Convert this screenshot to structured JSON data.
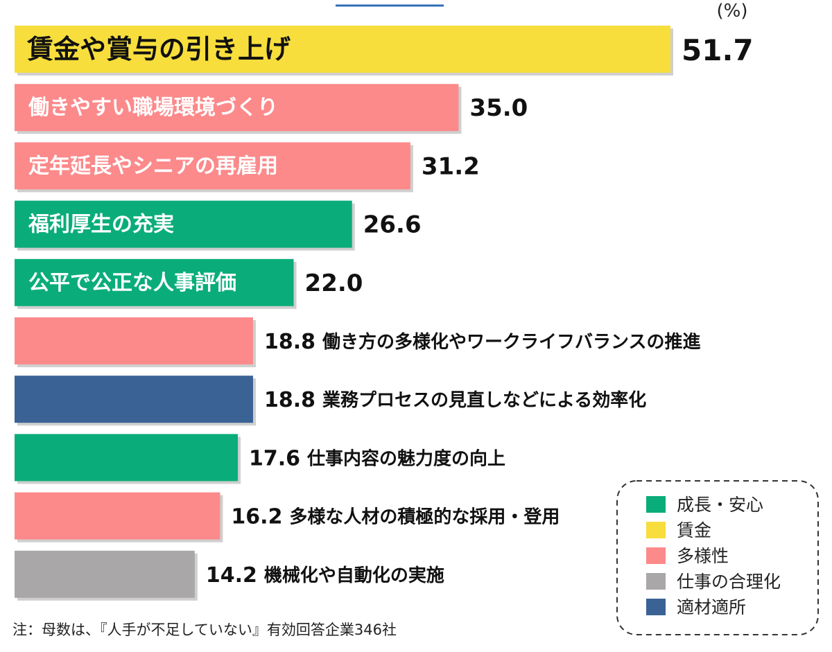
{
  "chart_data": {
    "type": "bar",
    "orientation": "horizontal",
    "unit": "(%)",
    "categories": [
      "賃金や賞与の引き上げ",
      "働きやすい職場環境づくり",
      "定年延長やシニアの再雇用",
      "福利厚生の充実",
      "公平で公正な人事評価",
      "働き方の多様化やワークライフバランスの推進",
      "業務プロセスの見直しなどによる効率化",
      "仕事内容の魅力度の向上",
      "多様な人材の積極的な採用・登用",
      "機械化や自動化の実施"
    ],
    "values": [
      51.7,
      35.0,
      31.2,
      26.6,
      22.0,
      18.8,
      18.8,
      17.6,
      16.2,
      14.2
    ],
    "value_labels": [
      "51.7",
      "35.0",
      "31.2",
      "26.6",
      "22.0",
      "18.8",
      "18.8",
      "17.6",
      "16.2",
      "14.2"
    ],
    "groups": [
      "賃金",
      "多様性",
      "多様性",
      "成長・安心",
      "成長・安心",
      "多様性",
      "適材適所",
      "成長・安心",
      "多様性",
      "仕事の合理化"
    ],
    "legend": [
      {
        "name": "成長・安心",
        "color": "#0aad7a"
      },
      {
        "name": "賃金",
        "color": "#f7de3c"
      },
      {
        "name": "多様性",
        "color": "#fc8a8b"
      },
      {
        "name": "仕事の合理化",
        "color": "#a9a7a8"
      },
      {
        "name": "適材適所",
        "color": "#3a6295"
      }
    ],
    "legend_position": "bottom-right",
    "xlim": [
      0,
      51.7
    ]
  },
  "note": "注：母数は、『人手が不足していない』有効回答企業346社",
  "colors": {
    "top_accent": "#2f6db5",
    "shadow": "#cfcfcf",
    "legend_border": "#333333"
  }
}
